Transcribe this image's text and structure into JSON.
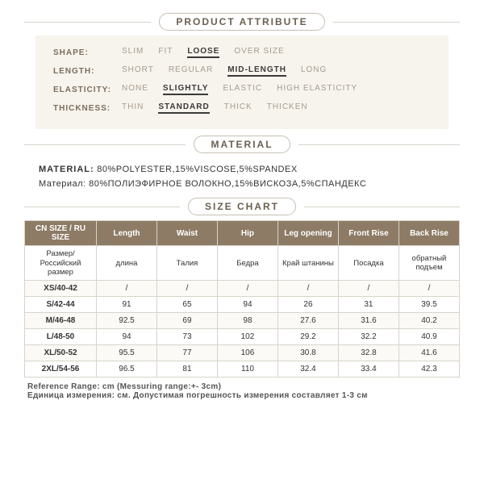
{
  "colors": {
    "bg": "#ffffff",
    "panel": "#f7f3ed",
    "line": "#d8d2ca",
    "pillBorder": "#c7bfb3",
    "pillText": "#6b5f50",
    "thBg": "#8d7b65",
    "thText": "#ffffff",
    "cellBorder": "#d9d4cb",
    "muted": "#a59c8e",
    "selected": "#3a3a3a"
  },
  "sections": {
    "attribute": "PRODUCT ATTRIBUTE",
    "material": "MATERIAL",
    "size": "SIZE CHART"
  },
  "attributes": [
    {
      "label": "SHAPE:",
      "options": [
        "SLIM",
        "FIT",
        "LOOSE",
        "OVER SIZE"
      ],
      "selectedIndex": 2
    },
    {
      "label": "LENGTH:",
      "options": [
        "SHORT",
        "REGULAR",
        "MID-LENGTH",
        "LONG"
      ],
      "selectedIndex": 2
    },
    {
      "label": "ELASTICITY:",
      "options": [
        "NONE",
        "SLIGHTLY",
        "ELASTIC",
        "HIGH ELASTICITY"
      ],
      "selectedIndex": 1
    },
    {
      "label": "THICKNESS:",
      "options": [
        "THIN",
        "STANDARD",
        "THICK",
        "THICKEN"
      ],
      "selectedIndex": 1
    }
  ],
  "material": {
    "label": "MATERIAL:",
    "en": "80%POLYESTER,15%VISCOSE,5%SPANDEX",
    "ruLabel": "Материал:",
    "ru": "80%ПОЛИЭФИРНОЕ ВОЛОКНО,15%ВИСКОЗА,5%СПАНДЕКС"
  },
  "chart": {
    "headers": [
      "CN SIZE / RU SIZE",
      "Length",
      "Waist",
      "Hip",
      "Leg opening",
      "Front Rise",
      "Back Rise"
    ],
    "subheaders": [
      "Размер/Российский размер",
      "длина",
      "Талия",
      "Бедра",
      "Край штанины",
      "Посадка",
      "обратный подъем"
    ],
    "rows": [
      [
        "XS/40-42",
        "/",
        "/",
        "/",
        "/",
        "/",
        "/"
      ],
      [
        "S/42-44",
        "91",
        "65",
        "94",
        "26",
        "31",
        "39.5"
      ],
      [
        "M/46-48",
        "92.5",
        "69",
        "98",
        "27.6",
        "31.6",
        "40.2"
      ],
      [
        "L/48-50",
        "94",
        "73",
        "102",
        "29.2",
        "32.2",
        "40.9"
      ],
      [
        "XL/50-52",
        "95.5",
        "77",
        "106",
        "30.8",
        "32.8",
        "41.6"
      ],
      [
        "2XL/54-56",
        "96.5",
        "81",
        "110",
        "32.4",
        "33.4",
        "42.3"
      ]
    ]
  },
  "reference": {
    "en": "Reference Range: cm (Messuring range:+- 3cm)",
    "ru": "Единица измерения: см. Допустимая погрешность измерения составляет 1-3 см"
  }
}
